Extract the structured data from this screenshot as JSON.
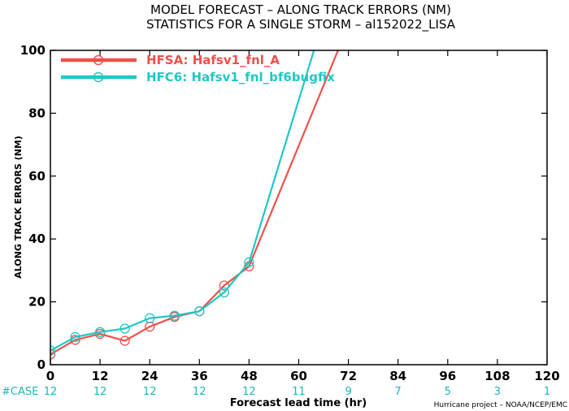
{
  "chart_data": {
    "type": "line",
    "title": "MODEL FORECAST – ALONG TRACK ERRORS (NM)",
    "subtitle": "STATISTICS FOR A SINGLE STORM – al152022_LISA",
    "xlabel": "Forecast lead time (hr)",
    "ylabel": "ALONG TRACK ERRORS (NM)",
    "xlim": [
      0,
      120
    ],
    "ylim": [
      0,
      100
    ],
    "xticks": [
      "0",
      "12",
      "24",
      "36",
      "48",
      "60",
      "72",
      "84",
      "96",
      "108",
      "120"
    ],
    "yticks": [
      "0",
      "20",
      "40",
      "60",
      "80",
      "100"
    ],
    "legend_position": "top-left",
    "case_label": "#CASE",
    "case_x": [
      0,
      12,
      24,
      36,
      48,
      60,
      72,
      84,
      96,
      108,
      120
    ],
    "case_counts": [
      "12",
      "12",
      "12",
      "12",
      "12",
      "11",
      "9",
      "7",
      "5",
      "3",
      "1"
    ],
    "credit": "Hurricane project – NOAA/NCEP/EMC",
    "series": [
      {
        "name": "HFSA: Hafsv1_fnl_A",
        "color": "#f0504c",
        "x": [
          0,
          6,
          12,
          18,
          24,
          30,
          36,
          42,
          48,
          72
        ],
        "y": [
          3.3,
          7.9,
          9.8,
          7.6,
          12.1,
          15.2,
          17.0,
          25.2,
          31.3,
          108
        ]
      },
      {
        "name": "HFC6: Hafsv1_fnl_bf6bugfix",
        "color": "#1fc8c4",
        "x": [
          0,
          6,
          12,
          18,
          24,
          30,
          36,
          42,
          48,
          66
        ],
        "y": [
          4.5,
          8.8,
          10.4,
          11.5,
          14.8,
          15.6,
          17.0,
          23.0,
          32.6,
          110
        ]
      }
    ]
  }
}
